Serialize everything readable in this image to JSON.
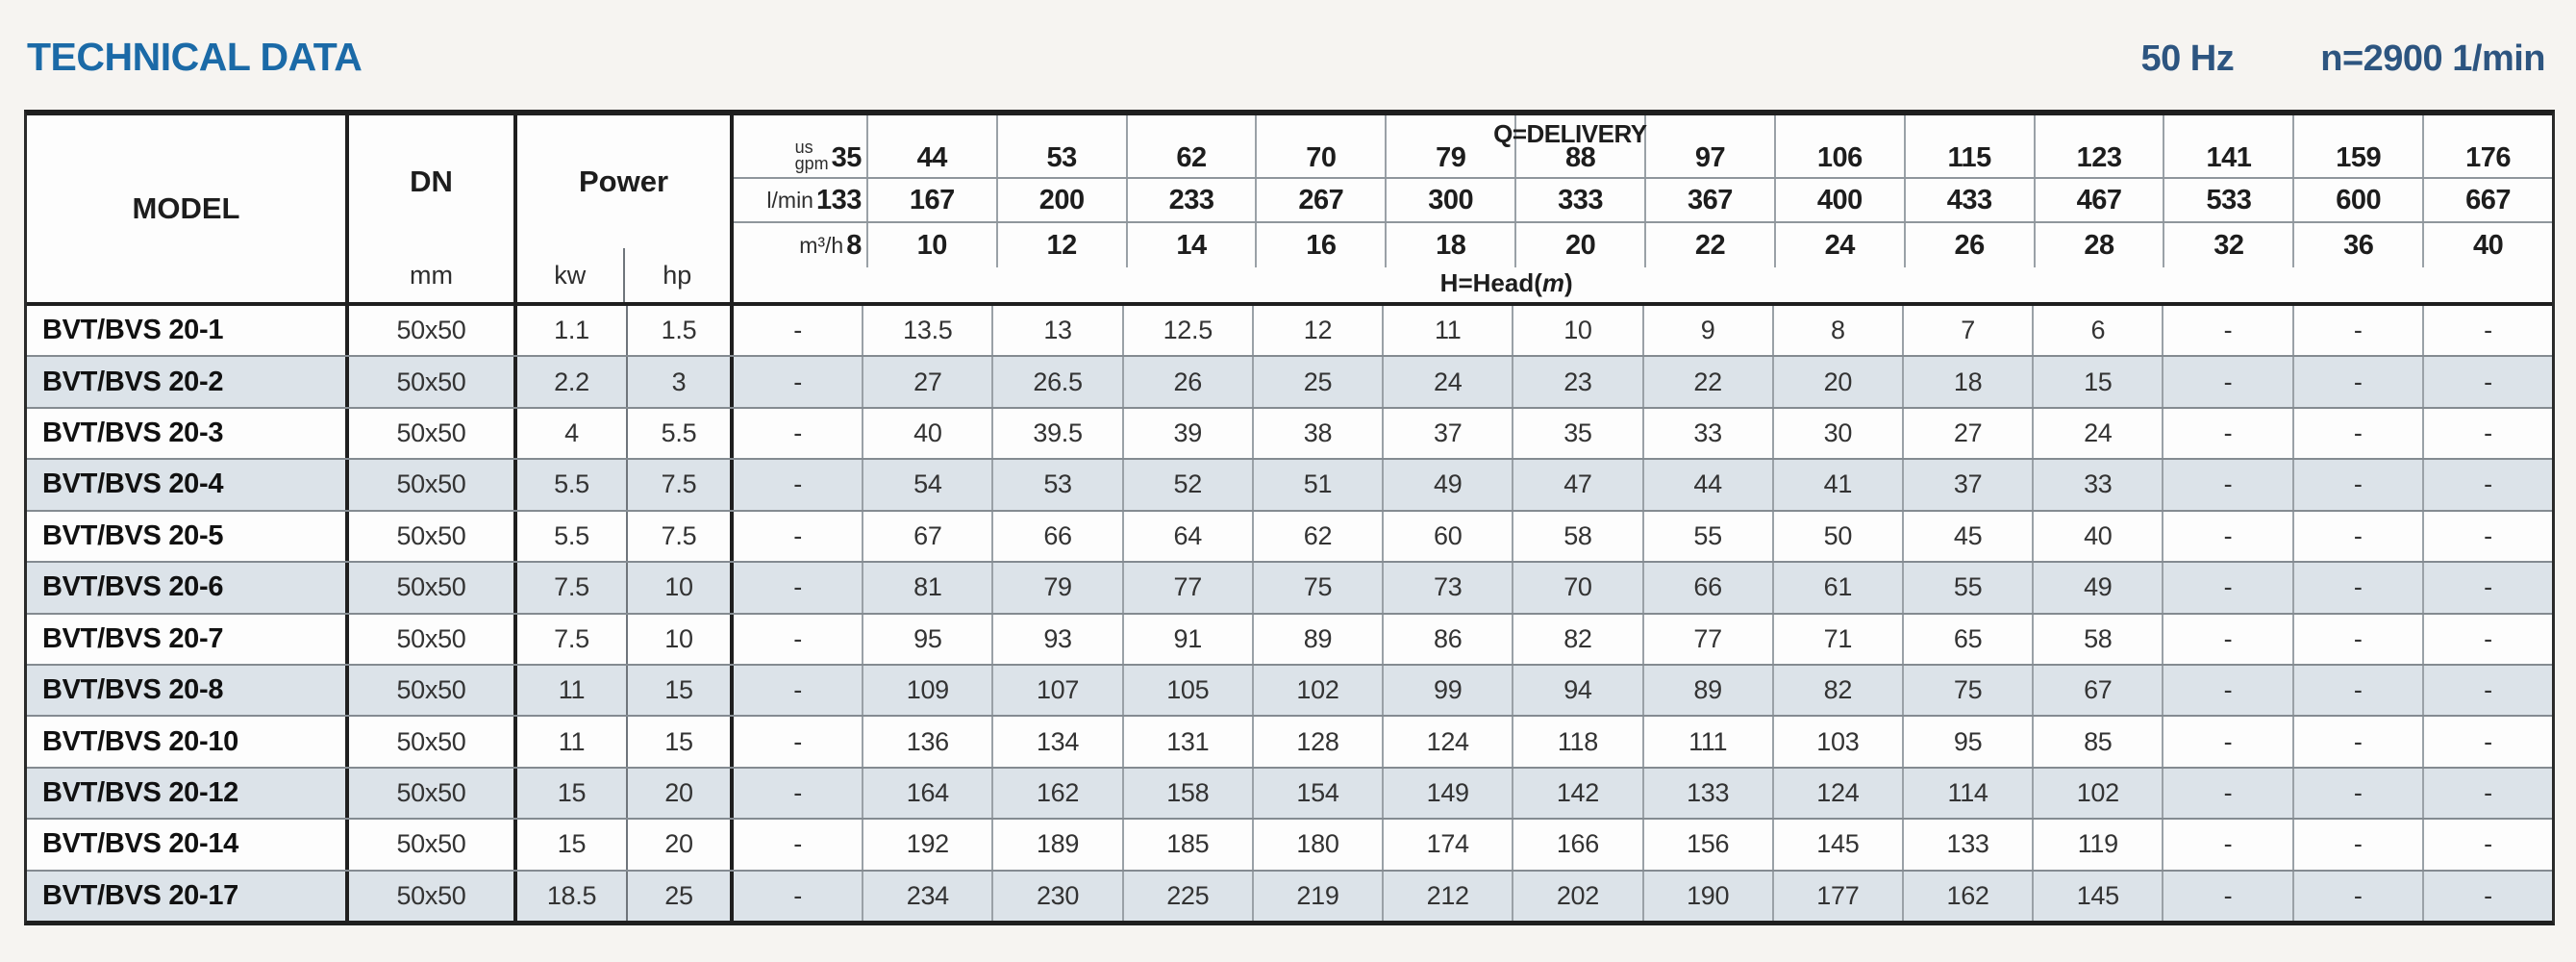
{
  "header": {
    "title": "TECHNICAL DATA",
    "frequency": "50 Hz",
    "speed": "n=2900 1/min"
  },
  "table": {
    "model_label": "MODEL",
    "dn_label": "DN",
    "dn_unit": "mm",
    "power_label": "Power",
    "power_unit_kw": "kw",
    "power_unit_hp": "hp",
    "delivery_title": "Q=DELIVERY",
    "head_title_prefix": "H=Head(",
    "head_title_symbol": "m",
    "head_title_suffix": ")",
    "unit_rows": [
      {
        "id": "us-gpm",
        "label_lines": [
          "us",
          "gpm"
        ],
        "values": [
          "35",
          "44",
          "53",
          "62",
          "70",
          "79",
          "88",
          "97",
          "106",
          "115",
          "123",
          "141",
          "159",
          "176"
        ]
      },
      {
        "id": "l-min",
        "label_lines": [
          "l/min"
        ],
        "values": [
          "133",
          "167",
          "200",
          "233",
          "267",
          "300",
          "333",
          "367",
          "400",
          "433",
          "467",
          "533",
          "600",
          "667"
        ]
      },
      {
        "id": "m3-h",
        "label_lines": [
          "m³/h"
        ],
        "values": [
          "8",
          "10",
          "12",
          "14",
          "16",
          "18",
          "20",
          "22",
          "24",
          "26",
          "28",
          "32",
          "36",
          "40"
        ]
      }
    ],
    "rows": [
      {
        "model": "BVT/BVS 20-1",
        "dn": "50x50",
        "kw": "1.1",
        "hp": "1.5",
        "values": [
          "-",
          "13.5",
          "13",
          "12.5",
          "12",
          "11",
          "10",
          "9",
          "8",
          "7",
          "6",
          "-",
          "-",
          "-"
        ]
      },
      {
        "model": "BVT/BVS 20-2",
        "dn": "50x50",
        "kw": "2.2",
        "hp": "3",
        "values": [
          "-",
          "27",
          "26.5",
          "26",
          "25",
          "24",
          "23",
          "22",
          "20",
          "18",
          "15",
          "-",
          "-",
          "-"
        ]
      },
      {
        "model": "BVT/BVS 20-3",
        "dn": "50x50",
        "kw": "4",
        "hp": "5.5",
        "values": [
          "-",
          "40",
          "39.5",
          "39",
          "38",
          "37",
          "35",
          "33",
          "30",
          "27",
          "24",
          "-",
          "-",
          "-"
        ]
      },
      {
        "model": "BVT/BVS 20-4",
        "dn": "50x50",
        "kw": "5.5",
        "hp": "7.5",
        "values": [
          "-",
          "54",
          "53",
          "52",
          "51",
          "49",
          "47",
          "44",
          "41",
          "37",
          "33",
          "-",
          "-",
          "-"
        ]
      },
      {
        "model": "BVT/BVS 20-5",
        "dn": "50x50",
        "kw": "5.5",
        "hp": "7.5",
        "values": [
          "-",
          "67",
          "66",
          "64",
          "62",
          "60",
          "58",
          "55",
          "50",
          "45",
          "40",
          "-",
          "-",
          "-"
        ]
      },
      {
        "model": "BVT/BVS 20-6",
        "dn": "50x50",
        "kw": "7.5",
        "hp": "10",
        "values": [
          "-",
          "81",
          "79",
          "77",
          "75",
          "73",
          "70",
          "66",
          "61",
          "55",
          "49",
          "-",
          "-",
          "-"
        ]
      },
      {
        "model": "BVT/BVS 20-7",
        "dn": "50x50",
        "kw": "7.5",
        "hp": "10",
        "values": [
          "-",
          "95",
          "93",
          "91",
          "89",
          "86",
          "82",
          "77",
          "71",
          "65",
          "58",
          "-",
          "-",
          "-"
        ]
      },
      {
        "model": "BVT/BVS 20-8",
        "dn": "50x50",
        "kw": "11",
        "hp": "15",
        "values": [
          "-",
          "109",
          "107",
          "105",
          "102",
          "99",
          "94",
          "89",
          "82",
          "75",
          "67",
          "-",
          "-",
          "-"
        ]
      },
      {
        "model": "BVT/BVS 20-10",
        "dn": "50x50",
        "kw": "11",
        "hp": "15",
        "values": [
          "-",
          "136",
          "134",
          "131",
          "128",
          "124",
          "118",
          "111",
          "103",
          "95",
          "85",
          "-",
          "-",
          "-"
        ]
      },
      {
        "model": "BVT/BVS 20-12",
        "dn": "50x50",
        "kw": "15",
        "hp": "20",
        "values": [
          "-",
          "164",
          "162",
          "158",
          "154",
          "149",
          "142",
          "133",
          "124",
          "114",
          "102",
          "-",
          "-",
          "-"
        ]
      },
      {
        "model": "BVT/BVS 20-14",
        "dn": "50x50",
        "kw": "15",
        "hp": "20",
        "values": [
          "-",
          "192",
          "189",
          "185",
          "180",
          "174",
          "166",
          "156",
          "145",
          "133",
          "119",
          "-",
          "-",
          "-"
        ]
      },
      {
        "model": "BVT/BVS 20-17",
        "dn": "50x50",
        "kw": "18.5",
        "hp": "25",
        "values": [
          "-",
          "234",
          "230",
          "225",
          "219",
          "212",
          "202",
          "190",
          "177",
          "162",
          "145",
          "-",
          "-",
          "-"
        ]
      }
    ]
  },
  "colors": {
    "title_blue": "#1b6aa7",
    "meta_navy": "#2d5580",
    "row_stripe": "#dce3e9",
    "border_dark": "#1f1f1f",
    "border_gray": "#9aa1a7"
  }
}
